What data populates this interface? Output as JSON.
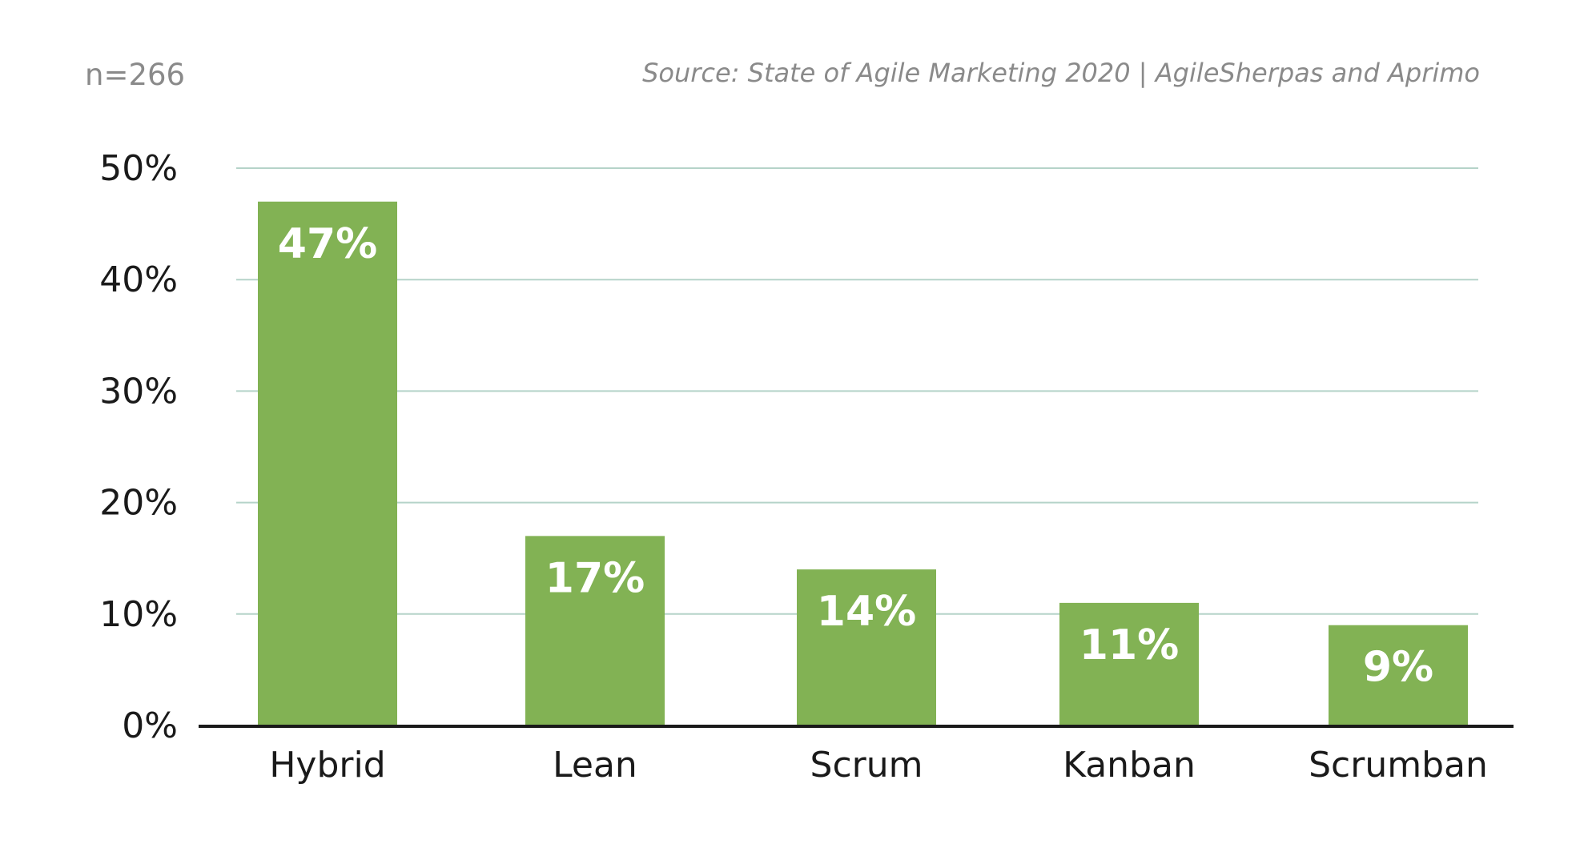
{
  "header": {
    "sample_size": "n=266",
    "source": "Source: State of Agile Marketing 2020 | AgileSherpas and Aprimo"
  },
  "colors": {
    "bar": "#82b254",
    "gridline": "#b5d3c9",
    "axis": "#1a1a1a",
    "label_text": "#1a1a1a",
    "bar_label_text": "#ffffff"
  },
  "chart_data": {
    "type": "bar",
    "categories": [
      "Hybrid",
      "Lean",
      "Scrum",
      "Kanban",
      "Scrumban"
    ],
    "values": [
      47,
      17,
      14,
      11,
      9
    ],
    "value_labels": [
      "47%",
      "17%",
      "14%",
      "11%",
      "9%"
    ],
    "yticks": [
      "0%",
      "10%",
      "20%",
      "30%",
      "40%",
      "50%"
    ],
    "ytick_values": [
      0,
      10,
      20,
      30,
      40,
      50
    ],
    "ylim": [
      0,
      50
    ],
    "grid": true,
    "title": "",
    "xlabel": "",
    "ylabel": ""
  }
}
